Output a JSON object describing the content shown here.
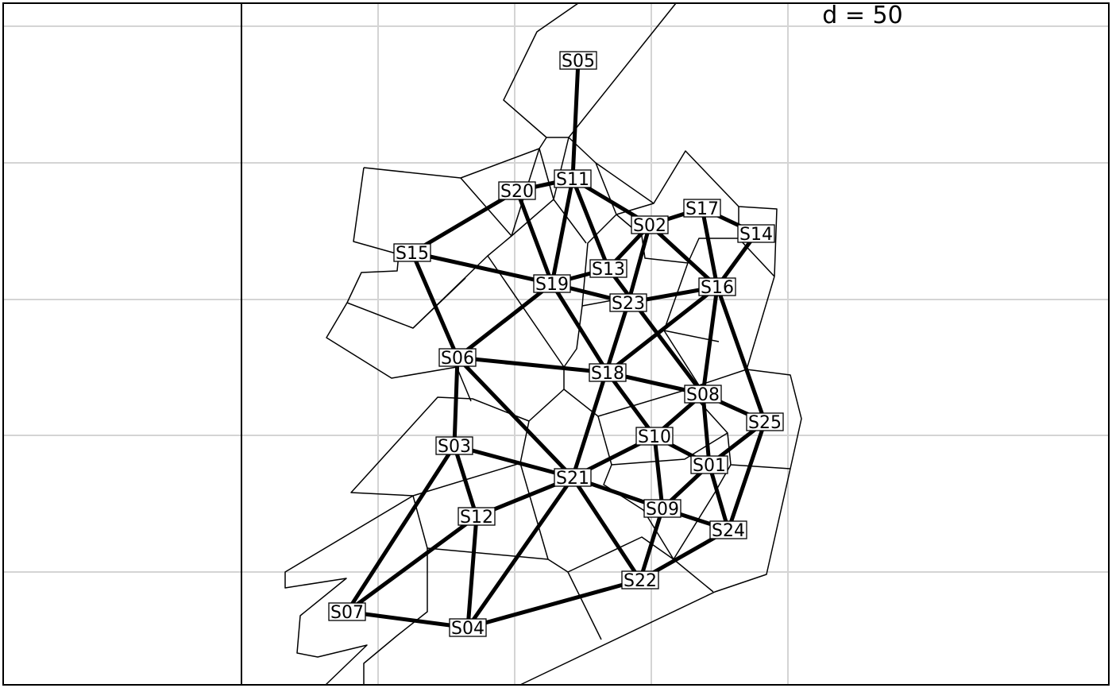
{
  "scale_label": "d = 50",
  "nodes": [
    {
      "id": "S01",
      "label": "S01"
    },
    {
      "id": "S02",
      "label": "S02"
    },
    {
      "id": "S03",
      "label": "S03"
    },
    {
      "id": "S04",
      "label": "S04"
    },
    {
      "id": "S05",
      "label": "S05"
    },
    {
      "id": "S06",
      "label": "S06"
    },
    {
      "id": "S07",
      "label": "S07"
    },
    {
      "id": "S08",
      "label": "S08"
    },
    {
      "id": "S09",
      "label": "S09"
    },
    {
      "id": "S10",
      "label": "S10"
    },
    {
      "id": "S11",
      "label": "S11"
    },
    {
      "id": "S12",
      "label": "S12"
    },
    {
      "id": "S13",
      "label": "S13"
    },
    {
      "id": "S14",
      "label": "S14"
    },
    {
      "id": "S15",
      "label": "S15"
    },
    {
      "id": "S16",
      "label": "S16"
    },
    {
      "id": "S17",
      "label": "S17"
    },
    {
      "id": "S18",
      "label": "S18"
    },
    {
      "id": "S19",
      "label": "S19"
    },
    {
      "id": "S20",
      "label": "S20"
    },
    {
      "id": "S21",
      "label": "S21"
    },
    {
      "id": "S22",
      "label": "S22"
    },
    {
      "id": "S23",
      "label": "S23"
    },
    {
      "id": "S24",
      "label": "S24"
    },
    {
      "id": "S25",
      "label": "S25"
    }
  ],
  "edges": [
    [
      "S05",
      "S11"
    ],
    [
      "S11",
      "S20"
    ],
    [
      "S11",
      "S19"
    ],
    [
      "S11",
      "S13"
    ],
    [
      "S11",
      "S02"
    ],
    [
      "S20",
      "S15"
    ],
    [
      "S20",
      "S19"
    ],
    [
      "S15",
      "S19"
    ],
    [
      "S15",
      "S06"
    ],
    [
      "S19",
      "S13"
    ],
    [
      "S19",
      "S23"
    ],
    [
      "S19",
      "S06"
    ],
    [
      "S19",
      "S18"
    ],
    [
      "S13",
      "S02"
    ],
    [
      "S13",
      "S08"
    ],
    [
      "S02",
      "S17"
    ],
    [
      "S02",
      "S16"
    ],
    [
      "S02",
      "S23"
    ],
    [
      "S17",
      "S14"
    ],
    [
      "S17",
      "S16"
    ],
    [
      "S14",
      "S16"
    ],
    [
      "S16",
      "S23"
    ],
    [
      "S16",
      "S18"
    ],
    [
      "S16",
      "S08"
    ],
    [
      "S16",
      "S25"
    ],
    [
      "S23",
      "S21"
    ],
    [
      "S06",
      "S18"
    ],
    [
      "S06",
      "S03"
    ],
    [
      "S06",
      "S21"
    ],
    [
      "S18",
      "S08"
    ],
    [
      "S18",
      "S10"
    ],
    [
      "S08",
      "S10"
    ],
    [
      "S08",
      "S25"
    ],
    [
      "S08",
      "S01"
    ],
    [
      "S25",
      "S01"
    ],
    [
      "S25",
      "S24"
    ],
    [
      "S10",
      "S21"
    ],
    [
      "S10",
      "S01"
    ],
    [
      "S10",
      "S09"
    ],
    [
      "S01",
      "S09"
    ],
    [
      "S01",
      "S24"
    ],
    [
      "S03",
      "S21"
    ],
    [
      "S03",
      "S12"
    ],
    [
      "S03",
      "S07"
    ],
    [
      "S21",
      "S12"
    ],
    [
      "S21",
      "S09"
    ],
    [
      "S21",
      "S22"
    ],
    [
      "S21",
      "S04"
    ],
    [
      "S09",
      "S24"
    ],
    [
      "S09",
      "S22"
    ],
    [
      "S24",
      "S22"
    ],
    [
      "S12",
      "S07"
    ],
    [
      "S12",
      "S04"
    ],
    [
      "S07",
      "S04"
    ],
    [
      "S04",
      "S22"
    ]
  ]
}
